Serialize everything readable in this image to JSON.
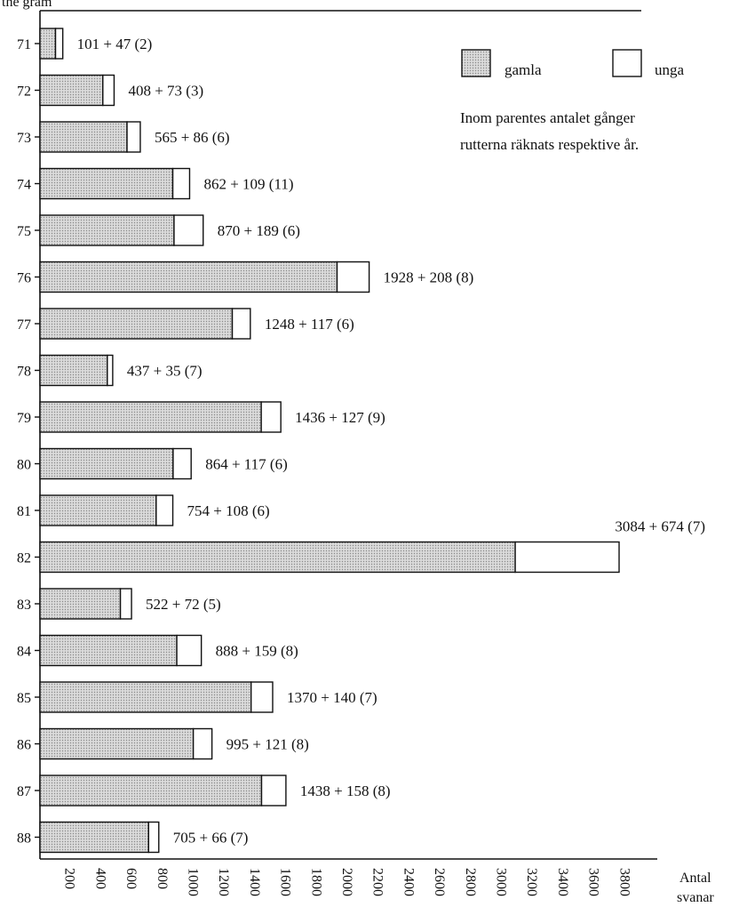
{
  "chart_data": {
    "type": "bar",
    "stacked": true,
    "orientation": "horizontal",
    "title": "",
    "top_left_text": "the gram",
    "ylabel": "",
    "xlabel": [
      "Antal",
      "svanar"
    ],
    "categories": [
      "71",
      "72",
      "73",
      "74",
      "75",
      "76",
      "77",
      "78",
      "79",
      "80",
      "81",
      "82",
      "83",
      "84",
      "85",
      "86",
      "87",
      "88"
    ],
    "series": [
      {
        "name": "gamla",
        "values": [
          101,
          408,
          565,
          862,
          870,
          1928,
          1248,
          437,
          1436,
          864,
          754,
          3084,
          522,
          888,
          1370,
          995,
          1438,
          705
        ]
      },
      {
        "name": "unga",
        "values": [
          47,
          73,
          86,
          109,
          189,
          208,
          117,
          35,
          127,
          117,
          108,
          674,
          72,
          159,
          140,
          121,
          158,
          66
        ]
      }
    ],
    "counts": [
      2,
      3,
      6,
      11,
      6,
      8,
      6,
      7,
      9,
      6,
      6,
      7,
      5,
      8,
      7,
      8,
      8,
      7
    ],
    "bar_labels": [
      "101 + 47 (2)",
      "408 + 73 (3)",
      "565 + 86 (6)",
      "862 + 109 (11)",
      "870 + 189 (6)",
      "1928 + 208 (8)",
      "1248 + 117 (6)",
      "437 + 35 (7)",
      "1436 + 127 (9)",
      "864 + 117 (6)",
      "754 + 108 (6)",
      "3084 + 674 (7)",
      "522 + 72 (5)",
      "888 + 159 (8)",
      "1370 + 140 (7)",
      "995 + 121 (8)",
      "1438 + 158 (8)",
      "705 + 66 (7)"
    ],
    "xticks": [
      200,
      400,
      600,
      800,
      1000,
      1200,
      1400,
      1600,
      1800,
      2000,
      2200,
      2400,
      2600,
      2800,
      3000,
      3200,
      3400,
      3600,
      3800
    ],
    "xlim": [
      0,
      3900
    ],
    "legend": {
      "position": "top-right",
      "items": [
        {
          "label": "gamla",
          "style": "dotted"
        },
        {
          "label": "unga",
          "style": "white"
        }
      ],
      "note": [
        "Inom parentes antalet gånger",
        "rutterna räknats respektive år."
      ]
    },
    "grid": false,
    "colors": {
      "gamla": "#d6d6d6",
      "unga": "#ffffff",
      "stroke": "#111111"
    }
  }
}
